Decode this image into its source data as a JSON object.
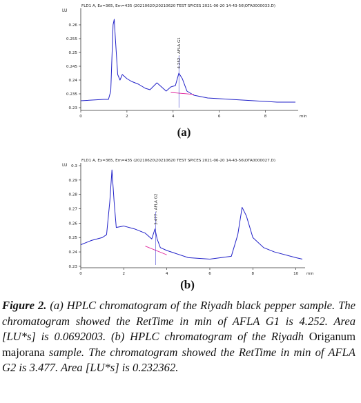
{
  "chart_data": [
    {
      "type": "line",
      "title": "FLD1 A, Ex=365, Em=435 (20210620\\20210620 TEST SPICES 2021-06-20 14-43-56\\OTA0000033.D)",
      "y_label": "LU",
      "x_label": "min",
      "panel_label": "(a)",
      "xlim": [
        0,
        9.3
      ],
      "xticks": [
        0,
        2,
        4,
        6,
        8
      ],
      "ylim": [
        0.229,
        0.265
      ],
      "yticks": [
        0.23,
        0.235,
        0.24,
        0.245,
        0.25,
        0.255,
        0.26
      ],
      "series": [
        {
          "color": "#2020c8",
          "x": [
            0,
            1.0,
            1.2,
            1.3,
            1.4,
            1.45,
            1.5,
            1.6,
            1.7,
            1.8,
            2.0,
            2.2,
            2.5,
            2.8,
            3.0,
            3.3,
            3.5,
            3.7,
            3.9,
            4.1,
            4.25,
            4.4,
            4.6,
            4.9,
            5.5,
            6.5,
            7.5,
            8.5,
            9.3
          ],
          "values": [
            0.2325,
            0.233,
            0.233,
            0.236,
            0.26,
            0.262,
            0.255,
            0.242,
            0.24,
            0.242,
            0.2405,
            0.2395,
            0.2385,
            0.237,
            0.2365,
            0.239,
            0.2375,
            0.236,
            0.2375,
            0.238,
            0.2425,
            0.2405,
            0.236,
            0.2345,
            0.2335,
            0.233,
            0.2325,
            0.232,
            0.232
          ]
        }
      ],
      "baseline": {
        "color": "#e0209a",
        "x": [
          3.9,
          4.9
        ],
        "values": [
          0.2355,
          0.2348
        ]
      },
      "annotation": {
        "text": "4.252 - AFLA G1",
        "x": 4.252
      }
    },
    {
      "type": "line",
      "title": "FLD1 A, Ex=365, Em=435 (20210620\\20210620 TEST SPICES 2021-06-20 14-43-56\\OTA0000027.D)",
      "y_label": "LU",
      "x_label": "min",
      "panel_label": "(b)",
      "xlim": [
        0,
        10.3
      ],
      "xticks": [
        0,
        2,
        4,
        6,
        8,
        10
      ],
      "ylim": [
        0.229,
        0.3
      ],
      "yticks": [
        0.23,
        0.24,
        0.25,
        0.26,
        0.27,
        0.28,
        0.29,
        0.3
      ],
      "series": [
        {
          "color": "#2020c8",
          "x": [
            0,
            0.5,
            1.0,
            1.2,
            1.35,
            1.45,
            1.55,
            1.65,
            2.0,
            2.5,
            3.0,
            3.3,
            3.45,
            3.55,
            3.7,
            4.0,
            5.0,
            6.0,
            7.0,
            7.3,
            7.5,
            7.7,
            8.0,
            8.5,
            9.0,
            10.0,
            10.3
          ],
          "values": [
            0.245,
            0.248,
            0.25,
            0.252,
            0.275,
            0.297,
            0.275,
            0.257,
            0.258,
            0.256,
            0.253,
            0.249,
            0.256,
            0.249,
            0.243,
            0.241,
            0.236,
            0.235,
            0.237,
            0.252,
            0.271,
            0.265,
            0.25,
            0.243,
            0.24,
            0.236,
            0.235
          ]
        }
      ],
      "baseline": {
        "color": "#e0209a",
        "x": [
          3.0,
          4.0
        ],
        "values": [
          0.244,
          0.238
        ]
      },
      "annotation": {
        "text": "3.477 - AFLA G2",
        "x": 3.477
      }
    }
  ],
  "caption": [
    {
      "text": "Figure 2.",
      "style": "bold-italic"
    },
    {
      "text": " (a) HPLC chromatogram of the Riyadh black pepper sample. The chromatogram showed the RetTime in min of AFLA G1 is 4.252. Area [LU*s] is 0.0692003. (b) HPLC chromatogram of the Riyadh ",
      "style": "italic"
    },
    {
      "text": "Origanum majorana",
      "style": "normal"
    },
    {
      "text": " sample. The chromatogram showed the RetTime in min of AFLA G2 is 3.477. Area [LU*s] is 0.232362.",
      "style": "italic"
    }
  ]
}
